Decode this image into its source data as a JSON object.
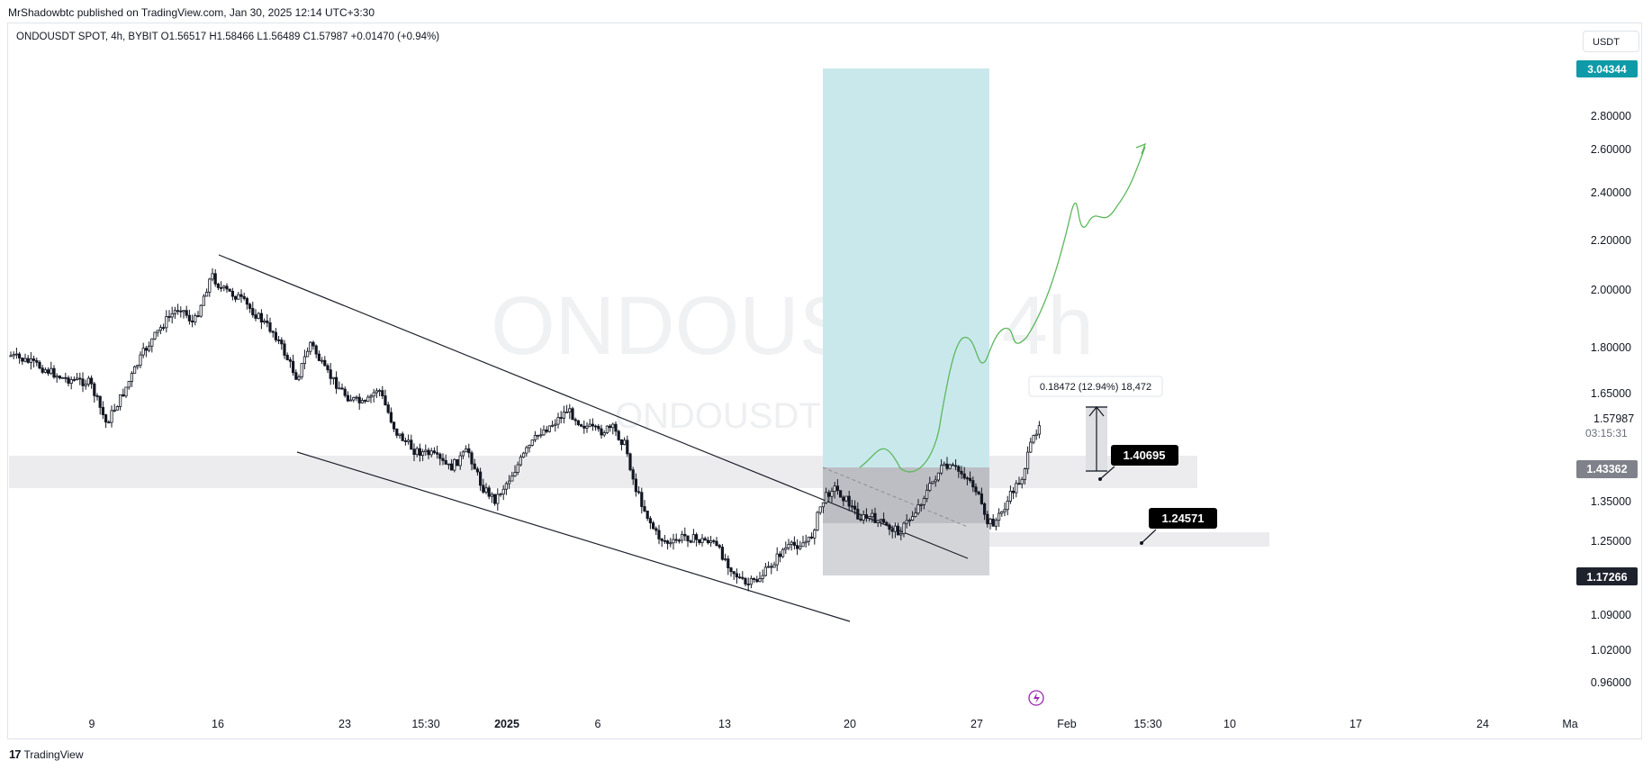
{
  "header": {
    "published": "MrShadowbtc published on TradingView.com, Jan 30, 2025 12:14 UTC+3:30",
    "legend": "ONDOUSDT SPOT, 4h, BYBIT  O1.56517  H1.58466  L1.56489  C1.57987  +0.01470 (+0.94%)",
    "currency": "USDT"
  },
  "footer": {
    "brand": "TradingView",
    "logo_glyph": "17"
  },
  "watermark": {
    "main": "ONDOUSDT, 4h",
    "sub": "ONDOUSDT SPOT"
  },
  "colors": {
    "target_zone": "#c9e8ec",
    "stop_zone": "#d4d5d9",
    "price_tag": "#0e9aa7",
    "dark_tag": "#1e222d",
    "projection": "#5cb85c",
    "candles": "#131722"
  },
  "chart_data": {
    "type": "candlestick",
    "symbol": "ONDOUSDT SPOT",
    "interval": "4h",
    "exchange": "BYBIT",
    "ohlc": {
      "open": 1.56517,
      "high": 1.58466,
      "low": 1.56489,
      "close": 1.57987,
      "change": 0.0147,
      "change_pct": 0.94
    },
    "y_axis_ticks": [
      "2.80000",
      "2.60000",
      "2.40000",
      "2.20000",
      "2.00000",
      "1.80000",
      "1.65000",
      "1.35000",
      "1.25000",
      "1.09000",
      "1.02000",
      "0.96000"
    ],
    "x_axis_ticks": [
      {
        "label": "9",
        "bold": false
      },
      {
        "label": "16",
        "bold": false
      },
      {
        "label": "23",
        "bold": false
      },
      {
        "label": "15:30",
        "bold": false
      },
      {
        "label": "2025",
        "bold": true
      },
      {
        "label": "6",
        "bold": false
      },
      {
        "label": "13",
        "bold": false
      },
      {
        "label": "20",
        "bold": false
      },
      {
        "label": "27",
        "bold": false
      },
      {
        "label": "Feb",
        "bold": false
      },
      {
        "label": "15:30",
        "bold": false
      },
      {
        "label": "10",
        "bold": false
      },
      {
        "label": "17",
        "bold": false
      },
      {
        "label": "24",
        "bold": false
      },
      {
        "label": "Ma",
        "bold": false
      }
    ],
    "price_tags": [
      {
        "value": "3.04344",
        "style": "teal"
      },
      {
        "value": "1.57987",
        "style": "plain",
        "countdown": "03:15:31"
      },
      {
        "value": "1.43362",
        "style": "gray"
      },
      {
        "value": "1.17266",
        "style": "dark"
      }
    ],
    "annotations": [
      {
        "text": "1.40695",
        "kind": "callout"
      },
      {
        "text": "1.24571",
        "kind": "callout"
      },
      {
        "text": "0.18472 (12.94%) 18,472",
        "kind": "measure"
      }
    ],
    "long_position": {
      "entry": 1.43362,
      "target": 3.04344,
      "stop": 1.17266
    },
    "channel": {
      "upper_start": 2.17,
      "upper_end": 1.33,
      "lower_start": 1.55,
      "lower_end": 1.06
    },
    "support_zones": [
      [
        1.38,
        1.46
      ],
      [
        1.23,
        1.26
      ]
    ]
  }
}
